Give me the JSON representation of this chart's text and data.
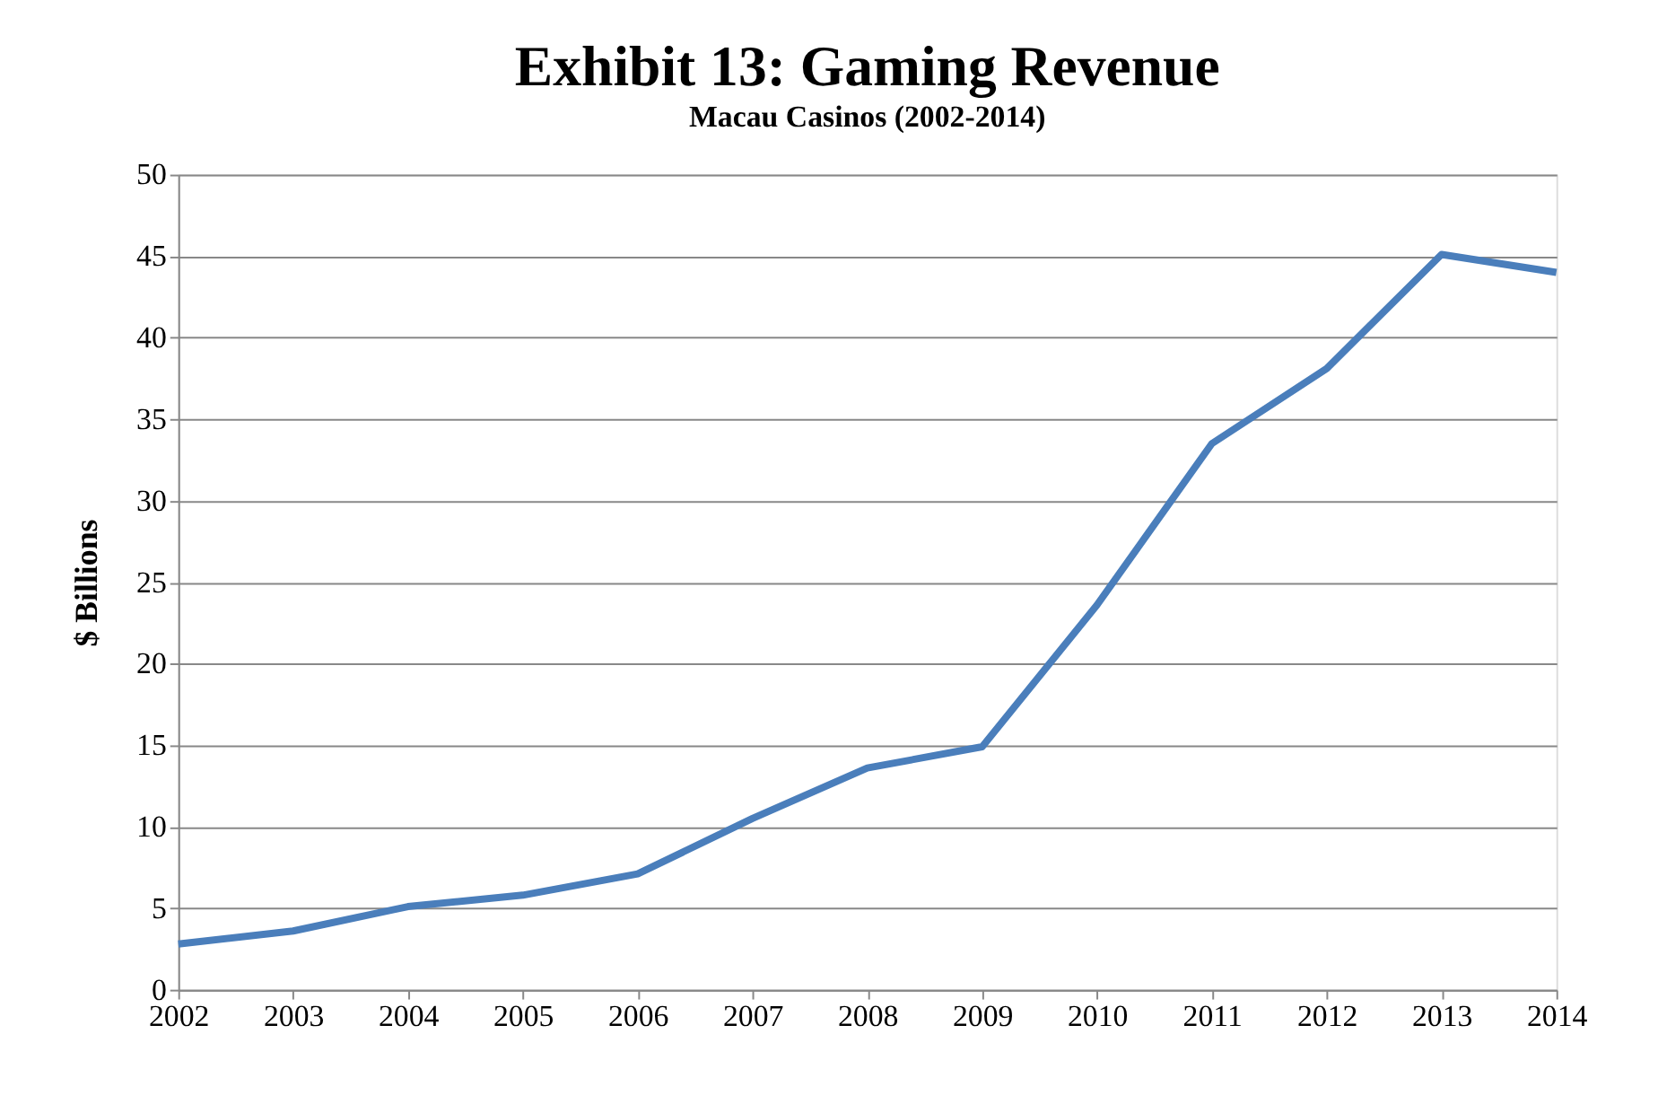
{
  "chart_data": {
    "type": "line",
    "title": "Exhibit 13: Gaming Revenue",
    "subtitle": "Macau Casinos (2002-2014)",
    "ylabel": "$ Billions",
    "categories": [
      "2002",
      "2003",
      "2004",
      "2005",
      "2006",
      "2007",
      "2008",
      "2009",
      "2010",
      "2011",
      "2012",
      "2013",
      "2014"
    ],
    "series": [
      {
        "color": "#4a7ebb",
        "values": [
          2.8,
          3.6,
          5.1,
          5.8,
          7.1,
          10.5,
          13.6,
          14.9,
          23.6,
          33.5,
          38.1,
          45.1,
          44.0
        ]
      }
    ],
    "ylim": [
      0,
      50
    ],
    "yticks": [
      0,
      5,
      10,
      15,
      20,
      25,
      30,
      35,
      40,
      45,
      50
    ],
    "grid": "y",
    "marker": "none",
    "line_style": "solid"
  }
}
